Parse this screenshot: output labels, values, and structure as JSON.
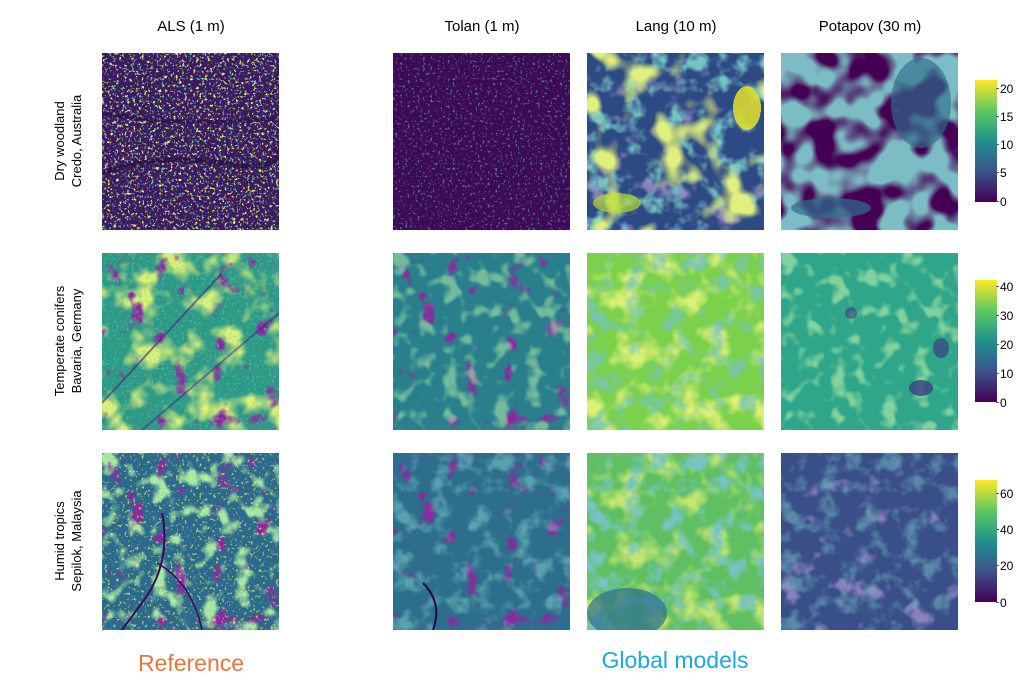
{
  "columns": [
    {
      "title": "ALS (1 m)"
    },
    {
      "title": "Tolan (1 m)"
    },
    {
      "title": "Lang (10 m)"
    },
    {
      "title": "Potapov (30 m)"
    }
  ],
  "rows": [
    {
      "line1": "Dry woodland",
      "line2": "Credo, Australia",
      "colorbar": {
        "ticks": [
          "20",
          "15",
          "10",
          "5",
          "0"
        ],
        "max": 22
      }
    },
    {
      "line1": "Temperate conifers",
      "line2": "Bavaria, Germany",
      "colorbar": {
        "ticks": [
          "40",
          "30",
          "20",
          "10",
          "0"
        ],
        "max": 43
      }
    },
    {
      "line1": "Humid tropics",
      "line2": "Sepilok, Malaysia",
      "colorbar": {
        "ticks": [
          "60",
          "40",
          "20",
          "0"
        ],
        "max": 68
      }
    }
  ],
  "groups": {
    "reference": {
      "label": "Reference",
      "color": "#e8773d"
    },
    "global": {
      "label": "Global models",
      "color": "#1ea8e0"
    }
  },
  "colormap": [
    "#440154",
    "#3b528b",
    "#21918c",
    "#5ec962",
    "#fde725"
  ]
}
